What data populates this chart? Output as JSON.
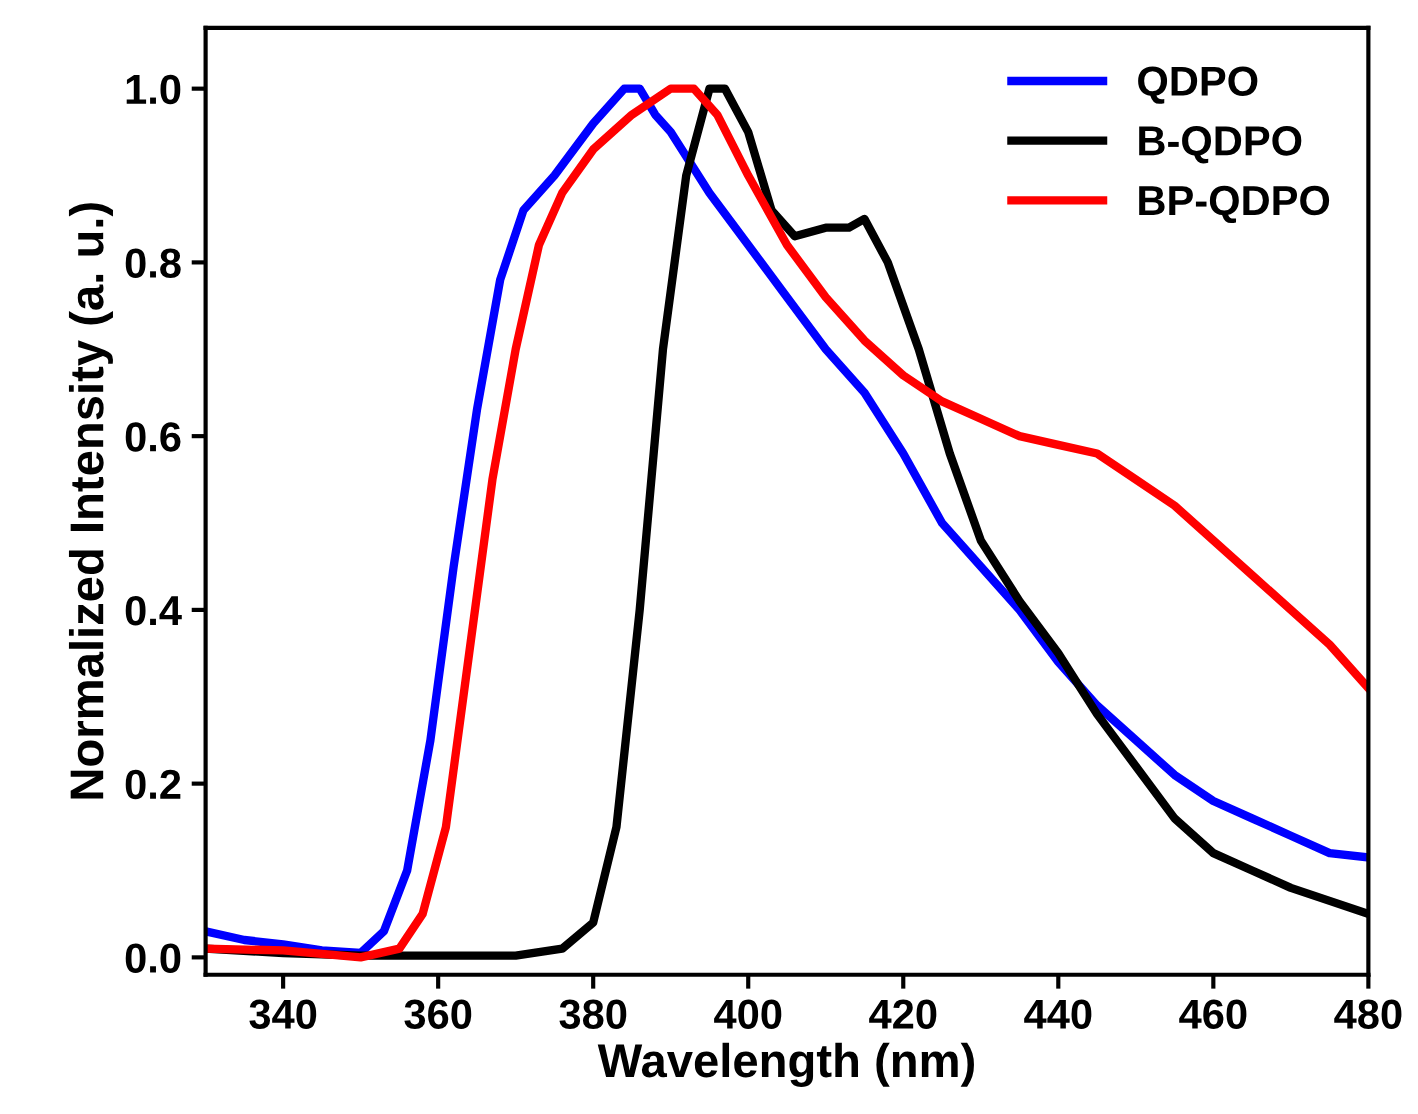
{
  "chart_data": {
    "type": "line",
    "xlabel": "Wavelength (nm)",
    "ylabel": "Normalized Intensity (a. u.)",
    "xlim": [
      330,
      480
    ],
    "xticks": [
      340,
      360,
      380,
      400,
      420,
      440,
      460,
      480
    ],
    "ylim": [
      -0.02,
      1.07
    ],
    "yticks": [
      {
        "value": 0,
        "label": "0.0"
      },
      0.2,
      0.4,
      0.6,
      0.8,
      {
        "value": 1,
        "label": "1.0"
      }
    ],
    "legend": "top right",
    "grid": false,
    "marker": "none",
    "line_style": "solid",
    "series": [
      {
        "name": "QDPO",
        "color": "#0000ff",
        "x": [
          330,
          335,
          340,
          345,
          350,
          353,
          356,
          359,
          362,
          365,
          368,
          371,
          375,
          380,
          384,
          386,
          388,
          390,
          395,
          400,
          405,
          410,
          415,
          420,
          425,
          430,
          435,
          440,
          445,
          450,
          455,
          460,
          465,
          470,
          475,
          480
        ],
        "values": [
          0.03,
          0.02,
          0.015,
          0.008,
          0.005,
          0.03,
          0.1,
          0.25,
          0.45,
          0.63,
          0.78,
          0.86,
          0.9,
          0.96,
          1.0,
          1.0,
          0.97,
          0.95,
          0.88,
          0.82,
          0.76,
          0.7,
          0.65,
          0.58,
          0.5,
          0.45,
          0.4,
          0.34,
          0.29,
          0.25,
          0.21,
          0.18,
          0.16,
          0.14,
          0.12,
          0.115
        ]
      },
      {
        "name": "B-QDPO",
        "color": "#000000",
        "x": [
          330,
          340,
          350,
          370,
          376,
          380,
          383,
          386,
          389,
          392,
          395,
          397,
          400,
          403,
          406,
          410,
          413,
          415,
          418,
          422,
          426,
          430,
          435,
          440,
          445,
          450,
          455,
          460,
          465,
          470,
          475,
          480
        ],
        "values": [
          0.01,
          0.005,
          0.002,
          0.002,
          0.01,
          0.04,
          0.15,
          0.4,
          0.7,
          0.9,
          1.0,
          1.0,
          0.95,
          0.86,
          0.83,
          0.84,
          0.84,
          0.85,
          0.8,
          0.7,
          0.58,
          0.48,
          0.41,
          0.35,
          0.28,
          0.22,
          0.16,
          0.12,
          0.1,
          0.08,
          0.065,
          0.05
        ]
      },
      {
        "name": "BP-QDPO",
        "color": "#ff0000",
        "x": [
          330,
          340,
          350,
          355,
          358,
          361,
          364,
          367,
          370,
          373,
          376,
          380,
          385,
          390,
          393,
          396,
          400,
          405,
          410,
          415,
          420,
          425,
          430,
          435,
          440,
          445,
          450,
          455,
          460,
          465,
          470,
          475,
          480
        ],
        "values": [
          0.01,
          0.008,
          0.0,
          0.01,
          0.05,
          0.15,
          0.35,
          0.55,
          0.7,
          0.82,
          0.88,
          0.93,
          0.97,
          1.0,
          1.0,
          0.97,
          0.9,
          0.82,
          0.76,
          0.71,
          0.67,
          0.64,
          0.62,
          0.6,
          0.59,
          0.58,
          0.55,
          0.52,
          0.48,
          0.44,
          0.4,
          0.36,
          0.31
        ]
      }
    ]
  }
}
